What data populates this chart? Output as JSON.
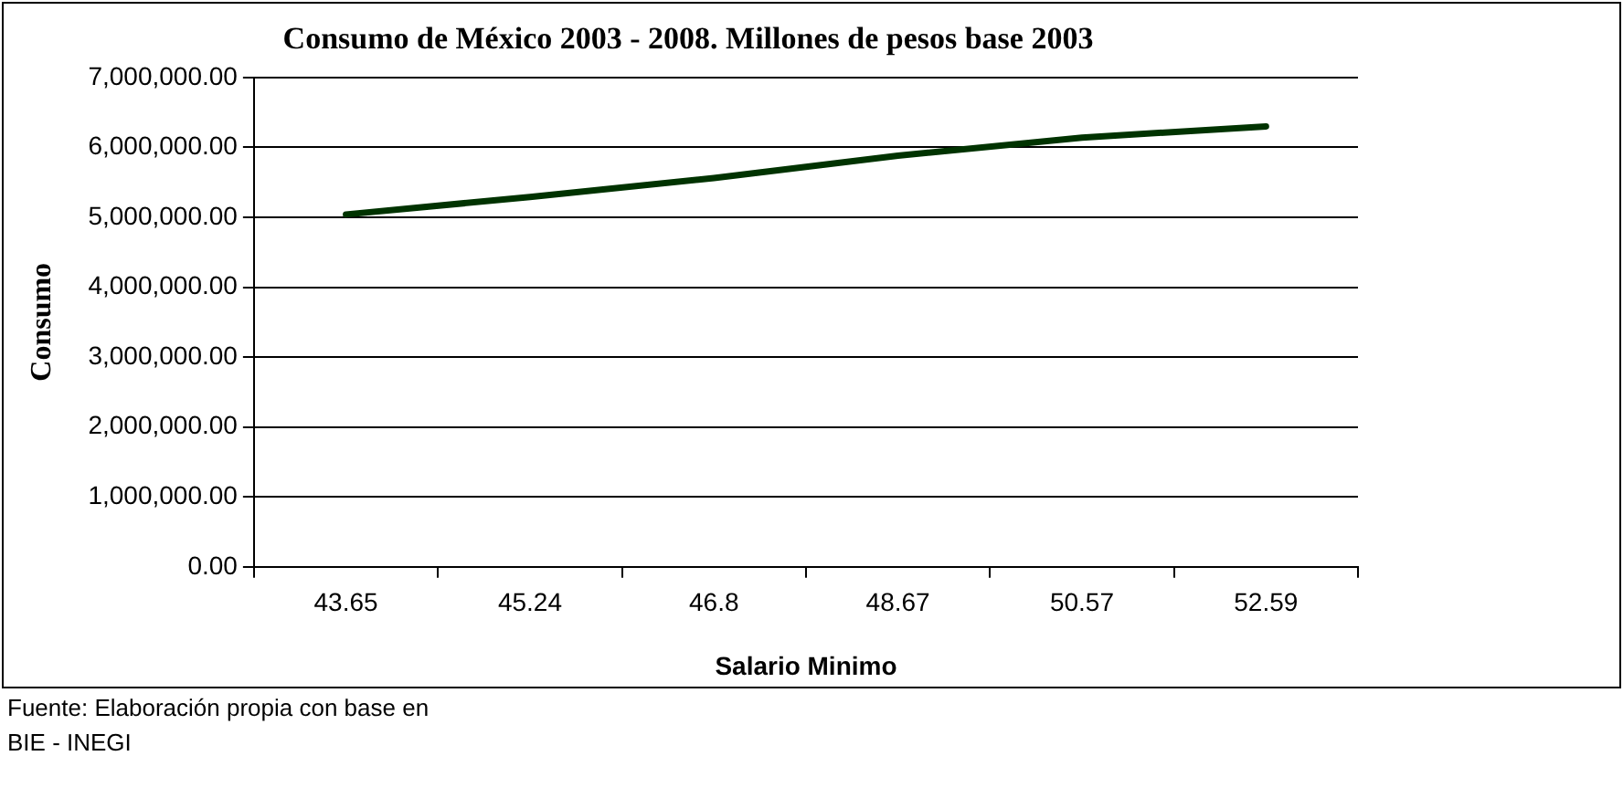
{
  "chart_data": {
    "type": "line",
    "title": "Consumo de México 2003 - 2008. Millones de pesos base 2003",
    "xlabel": "Salario Minimo",
    "ylabel": "Consumo",
    "categories": [
      "43.65",
      "45.24",
      "46.8",
      "48.67",
      "50.57",
      "52.59"
    ],
    "series": [
      {
        "color": "#003300",
        "values": [
          5040000,
          5290000,
          5560000,
          5880000,
          6140000,
          6300000
        ]
      }
    ],
    "ylim": [
      0,
      7000000
    ],
    "yticks": [
      {
        "value": 0,
        "label": "0.00"
      },
      {
        "value": 1000000,
        "label": "1,000,000.00"
      },
      {
        "value": 2000000,
        "label": "2,000,000.00"
      },
      {
        "value": 3000000,
        "label": "3,000,000.00"
      },
      {
        "value": 4000000,
        "label": "4,000,000.00"
      },
      {
        "value": 5000000,
        "label": "5,000,000.00"
      },
      {
        "value": 6000000,
        "label": "6,000,000.00"
      },
      {
        "value": 7000000,
        "label": "7,000,000.00"
      }
    ],
    "grid": "y",
    "legend": false,
    "marker": "none",
    "line_style": "solid",
    "annotations": [
      "Fuente: Elaboración propia con base en BIE - INEGI"
    ]
  }
}
